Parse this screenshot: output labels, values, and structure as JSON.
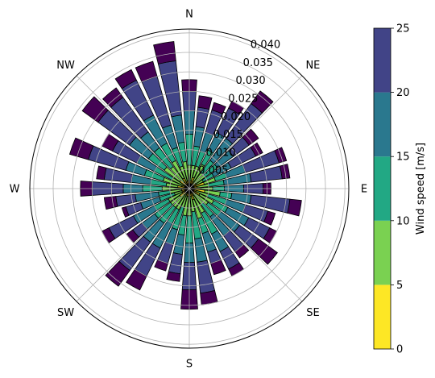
{
  "chart_data": {
    "type": "polar-stacked-bar",
    "radial_ticks": [
      0.005,
      0.01,
      0.015,
      0.02,
      0.025,
      0.03,
      0.035,
      0.04
    ],
    "radial_tick_labels": [
      "0.005",
      "0.010",
      "0.015",
      "0.020",
      "0.025",
      "0.030",
      "0.035",
      "0.040"
    ],
    "rmax": 0.041,
    "direction_labels": [
      "N",
      "NE",
      "E",
      "SE",
      "S",
      "SW",
      "W",
      "NW"
    ],
    "direction_label_angles": [
      0,
      45,
      90,
      135,
      180,
      225,
      270,
      315
    ],
    "n_directions": 36,
    "bin_edges": [
      0,
      5,
      10,
      15,
      20,
      25
    ],
    "bin_colors": [
      "#fde725",
      "#7ad151",
      "#22a884",
      "#2a788e",
      "#414487",
      "#440154"
    ],
    "colorbar": {
      "label": "Wind speed [m/s]",
      "ticks": [
        0,
        5,
        10,
        15,
        20,
        25
      ],
      "tick_labels": [
        "0",
        "5",
        "10",
        "15",
        "20",
        "25"
      ],
      "colors": [
        "#fde725",
        "#7ad151",
        "#22a884",
        "#2a788e",
        "#414487",
        "#440154"
      ]
    },
    "directions": [
      {
        "angle": 0,
        "boundaries": [
          0.001,
          0.006,
          0.014,
          0.02,
          0.025,
          0.028
        ]
      },
      {
        "angle": 10,
        "boundaries": [
          0.002,
          0.006,
          0.011,
          0.016,
          0.021,
          0.024
        ]
      },
      {
        "angle": 20,
        "boundaries": [
          0.003,
          0.006,
          0.01,
          0.015,
          0.021,
          0.023
        ]
      },
      {
        "angle": 30,
        "boundaries": [
          0.002,
          0.007,
          0.011,
          0.016,
          0.023,
          0.025
        ]
      },
      {
        "angle": 40,
        "boundaries": [
          0.001,
          0.005,
          0.009,
          0.016,
          0.027,
          0.031
        ]
      },
      {
        "angle": 50,
        "boundaries": [
          0.002,
          0.005,
          0.009,
          0.014,
          0.019,
          0.022
        ]
      },
      {
        "angle": 60,
        "boundaries": [
          0.002,
          0.004,
          0.007,
          0.012,
          0.019,
          0.021
        ]
      },
      {
        "angle": 70,
        "boundaries": [
          0.004,
          0.007,
          0.01,
          0.015,
          0.024,
          0.026
        ]
      },
      {
        "angle": 80,
        "boundaries": [
          0.002,
          0.005,
          0.009,
          0.016,
          0.024,
          0.026
        ]
      },
      {
        "angle": 90,
        "boundaries": [
          0.003,
          0.006,
          0.009,
          0.014,
          0.019,
          0.021
        ]
      },
      {
        "angle": 100,
        "boundaries": [
          0.004,
          0.008,
          0.011,
          0.016,
          0.026,
          0.029
        ]
      },
      {
        "angle": 110,
        "boundaries": [
          0.002,
          0.005,
          0.01,
          0.015,
          0.021,
          0.023
        ]
      },
      {
        "angle": 120,
        "boundaries": [
          0.003,
          0.007,
          0.011,
          0.017,
          0.023,
          0.025
        ]
      },
      {
        "angle": 130,
        "boundaries": [
          0.002,
          0.006,
          0.01,
          0.016,
          0.022,
          0.028
        ]
      },
      {
        "angle": 140,
        "boundaries": [
          0.001,
          0.005,
          0.009,
          0.015,
          0.02,
          0.022
        ]
      },
      {
        "angle": 150,
        "boundaries": [
          0.002,
          0.007,
          0.013,
          0.018,
          0.023,
          0.025
        ]
      },
      {
        "angle": 160,
        "boundaries": [
          0.003,
          0.008,
          0.012,
          0.017,
          0.02,
          0.023
        ]
      },
      {
        "angle": 170,
        "boundaries": [
          0.002,
          0.006,
          0.013,
          0.019,
          0.027,
          0.03
        ]
      },
      {
        "angle": 180,
        "boundaries": [
          0.002,
          0.007,
          0.014,
          0.019,
          0.026,
          0.031
        ]
      },
      {
        "angle": 190,
        "boundaries": [
          0.002,
          0.007,
          0.012,
          0.017,
          0.022,
          0.024
        ]
      },
      {
        "angle": 200,
        "boundaries": [
          0.002,
          0.005,
          0.011,
          0.015,
          0.02,
          0.022
        ]
      },
      {
        "angle": 210,
        "boundaries": [
          0.001,
          0.006,
          0.01,
          0.017,
          0.025,
          0.029
        ]
      },
      {
        "angle": 220,
        "boundaries": [
          0.002,
          0.006,
          0.011,
          0.017,
          0.026,
          0.031
        ]
      },
      {
        "angle": 230,
        "boundaries": [
          0.003,
          0.006,
          0.011,
          0.015,
          0.018,
          0.02
        ]
      },
      {
        "angle": 240,
        "boundaries": [
          0.002,
          0.006,
          0.01,
          0.016,
          0.023,
          0.025
        ]
      },
      {
        "angle": 250,
        "boundaries": [
          0.002,
          0.004,
          0.008,
          0.013,
          0.017,
          0.018
        ]
      },
      {
        "angle": 260,
        "boundaries": [
          0.002,
          0.005,
          0.008,
          0.014,
          0.019,
          0.022
        ]
      },
      {
        "angle": 270,
        "boundaries": [
          0.002,
          0.007,
          0.012,
          0.017,
          0.025,
          0.028
        ]
      },
      {
        "angle": 280,
        "boundaries": [
          0.003,
          0.006,
          0.01,
          0.015,
          0.022,
          0.024
        ]
      },
      {
        "angle": 290,
        "boundaries": [
          0.002,
          0.007,
          0.012,
          0.017,
          0.027,
          0.032
        ]
      },
      {
        "angle": 300,
        "boundaries": [
          0.001,
          0.005,
          0.01,
          0.015,
          0.022,
          0.025
        ]
      },
      {
        "angle": 310,
        "boundaries": [
          0.003,
          0.008,
          0.013,
          0.019,
          0.029,
          0.034
        ]
      },
      {
        "angle": 320,
        "boundaries": [
          0.002,
          0.007,
          0.013,
          0.018,
          0.029,
          0.032
        ]
      },
      {
        "angle": 330,
        "boundaries": [
          0.003,
          0.008,
          0.013,
          0.021,
          0.031,
          0.034
        ]
      },
      {
        "angle": 340,
        "boundaries": [
          0.002,
          0.006,
          0.011,
          0.017,
          0.03,
          0.034
        ]
      },
      {
        "angle": 350,
        "boundaries": [
          0.002,
          0.007,
          0.012,
          0.019,
          0.033,
          0.038
        ]
      }
    ]
  }
}
